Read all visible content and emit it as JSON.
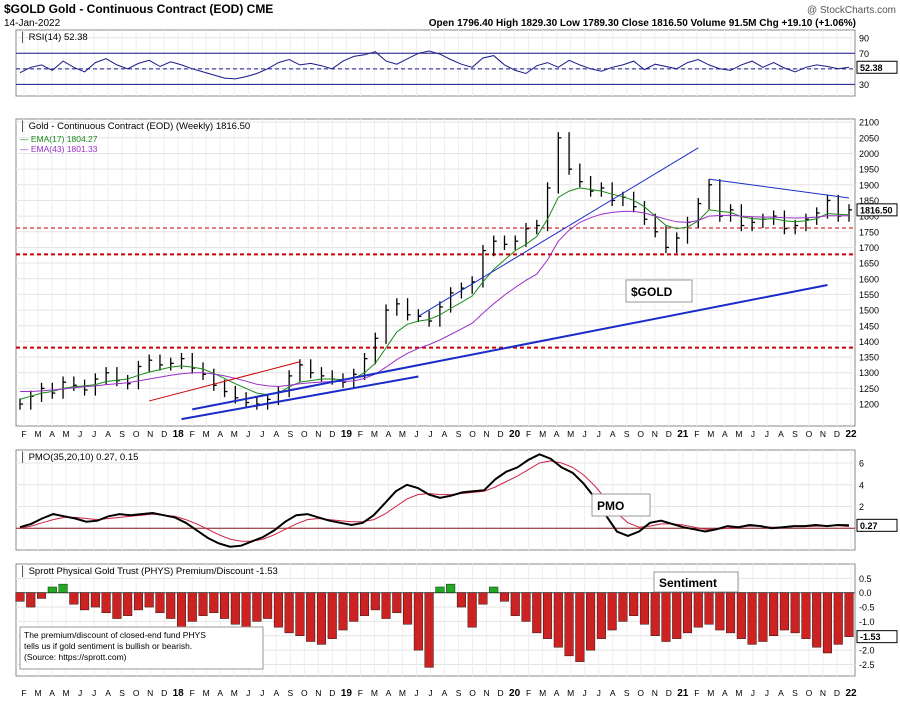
{
  "header": {
    "symbol_title": "$GOLD Gold - Continuous Contract (EOD) CME",
    "watermark": "@ StockCharts.com",
    "date": "14-Jan-2022",
    "ohlc": "Open 1796.40  High 1829.30  Low 1789.30  Close 1816.50  Volume 91.5M  Chg +19.10 (+1.06%)"
  },
  "colors": {
    "price": "#000000",
    "ema17": "#1a8a1a",
    "ema43": "#9b30c8",
    "trend": "#1a2cc8",
    "support": "#cc0000",
    "rsi": "#1a1a8a",
    "bar_red": "#cc2222",
    "bar_green": "#22aa22"
  },
  "x_axis_labels": [
    "F",
    "M",
    "A",
    "M",
    "J",
    "J",
    "A",
    "S",
    "O",
    "N",
    "D",
    "18",
    "F",
    "M",
    "A",
    "M",
    "J",
    "J",
    "A",
    "S",
    "O",
    "N",
    "D",
    "19",
    "F",
    "M",
    "A",
    "M",
    "J",
    "J",
    "A",
    "S",
    "O",
    "N",
    "D",
    "20",
    "F",
    "M",
    "A",
    "M",
    "J",
    "J",
    "A",
    "S",
    "O",
    "N",
    "D",
    "21",
    "F",
    "M",
    "A",
    "M",
    "J",
    "J",
    "A",
    "S",
    "O",
    "N",
    "D",
    "22"
  ],
  "chart_data": [
    {
      "type": "line",
      "title": "RSI(14) 52.38",
      "ylim": [
        15,
        100
      ],
      "y_ticks": [
        "90",
        "70",
        "50",
        "30"
      ],
      "last_label": "52.38",
      "reference_lines": [
        70,
        50,
        30
      ],
      "series": [
        {
          "name": "RSI(14)",
          "values": [
            45,
            52,
            55,
            48,
            60,
            52,
            46,
            58,
            63,
            55,
            50,
            57,
            61,
            53,
            59,
            55,
            50,
            46,
            42,
            38,
            37,
            40,
            44,
            50,
            58,
            62,
            55,
            57,
            54,
            50,
            60,
            66,
            68,
            72,
            60,
            56,
            63,
            70,
            73,
            69,
            62,
            56,
            52,
            64,
            67,
            55,
            48,
            44,
            54,
            58,
            52,
            61,
            55,
            50,
            47,
            52,
            55,
            60,
            49,
            56,
            53,
            50,
            58,
            62,
            55,
            50,
            48,
            55,
            60,
            52,
            58,
            51,
            46,
            52,
            55,
            53,
            50,
            52
          ]
        }
      ]
    },
    {
      "type": "line",
      "title": "Gold - Continuous Contract (EOD) (Weekly) 1816.50",
      "ylim": [
        1130,
        2110
      ],
      "y_ticks": [
        "2100",
        "2050",
        "2000",
        "1950",
        "1900",
        "1850",
        "1800",
        "1750",
        "1700",
        "1650",
        "1600",
        "1550",
        "1500",
        "1450",
        "1400",
        "1350",
        "1300",
        "1250",
        "1200"
      ],
      "last_label": "1816.50",
      "annotation": "$GOLD",
      "support_levels": [
        1762,
        1678,
        1380
      ],
      "series": [
        {
          "name": "Gold",
          "values": [
            1200,
            1225,
            1250,
            1235,
            1270,
            1260,
            1245,
            1280,
            1300,
            1275,
            1265,
            1320,
            1340,
            1325,
            1330,
            1345,
            1315,
            1295,
            1260,
            1240,
            1220,
            1205,
            1200,
            1215,
            1240,
            1290,
            1325,
            1300,
            1290,
            1280,
            1270,
            1295,
            1345,
            1410,
            1500,
            1520,
            1485,
            1480,
            1465,
            1510,
            1555,
            1570,
            1590,
            1690,
            1720,
            1710,
            1720,
            1760,
            1770,
            1890,
            2050,
            1950,
            1910,
            1880,
            1890,
            1850,
            1860,
            1830,
            1790,
            1750,
            1700,
            1730,
            1780,
            1840,
            1900,
            1800,
            1820,
            1770,
            1780,
            1790,
            1800,
            1760,
            1770,
            1790,
            1810,
            1850,
            1800,
            1820
          ]
        },
        {
          "name": "EMA(17) 1804.27",
          "values": [
            1215,
            1225,
            1235,
            1240,
            1250,
            1255,
            1258,
            1262,
            1272,
            1276,
            1280,
            1292,
            1302,
            1310,
            1318,
            1322,
            1318,
            1312,
            1298,
            1282,
            1265,
            1250,
            1235,
            1230,
            1235,
            1255,
            1270,
            1275,
            1280,
            1280,
            1278,
            1282,
            1300,
            1330,
            1380,
            1430,
            1455,
            1465,
            1470,
            1485,
            1505,
            1525,
            1545,
            1590,
            1630,
            1660,
            1690,
            1710,
            1735,
            1790,
            1860,
            1880,
            1890,
            1885,
            1880,
            1870,
            1862,
            1850,
            1830,
            1800,
            1770,
            1760,
            1765,
            1785,
            1820,
            1815,
            1812,
            1798,
            1792,
            1790,
            1792,
            1785,
            1782,
            1785,
            1792,
            1808,
            1806,
            1804
          ]
        },
        {
          "name": "EMA(43) 1801.33",
          "values": [
            1240,
            1240,
            1242,
            1245,
            1248,
            1252,
            1255,
            1258,
            1262,
            1265,
            1268,
            1274,
            1280,
            1286,
            1292,
            1297,
            1300,
            1300,
            1296,
            1290,
            1282,
            1273,
            1263,
            1258,
            1256,
            1260,
            1265,
            1268,
            1270,
            1272,
            1272,
            1274,
            1282,
            1296,
            1318,
            1342,
            1362,
            1378,
            1390,
            1405,
            1422,
            1440,
            1458,
            1490,
            1520,
            1548,
            1572,
            1595,
            1615,
            1660,
            1720,
            1755,
            1780,
            1795,
            1806,
            1812,
            1815,
            1815,
            1810,
            1800,
            1790,
            1782,
            1780,
            1786,
            1800,
            1802,
            1803,
            1800,
            1798,
            1797,
            1797,
            1795,
            1794,
            1795,
            1797,
            1801,
            1801,
            1801
          ]
        }
      ],
      "trend_lines": [
        {
          "from": [
            15,
            1152
          ],
          "to": [
            37,
            1288
          ]
        },
        {
          "from": [
            16,
            1183
          ],
          "to": [
            75,
            1580
          ]
        },
        {
          "from": [
            37,
            1480
          ],
          "to": [
            63,
            2018
          ]
        },
        {
          "from": [
            12,
            1210
          ],
          "to": [
            26,
            1335
          ]
        },
        {
          "from": [
            64,
            1918
          ],
          "to": [
            77,
            1858
          ]
        }
      ]
    },
    {
      "type": "line",
      "title": "PMO(35,20,10) 0.27, 0.15",
      "ylim": [
        -2,
        7.2
      ],
      "y_ticks": [
        "6",
        "4",
        "2",
        "0"
      ],
      "last_label": "0.27",
      "annotation": "PMO",
      "reference_lines": [
        0
      ],
      "series": [
        {
          "name": "PMO",
          "values": [
            0.1,
            0.4,
            0.9,
            1.3,
            1.1,
            0.9,
            0.6,
            0.7,
            1.1,
            1.3,
            1.2,
            1.3,
            1.4,
            1.2,
            1.0,
            0.5,
            -0.2,
            -0.9,
            -1.4,
            -1.7,
            -1.6,
            -1.2,
            -0.8,
            -0.2,
            0.6,
            1.2,
            1.3,
            1.0,
            0.7,
            0.5,
            0.3,
            0.5,
            1.2,
            2.3,
            3.4,
            4.0,
            3.7,
            3.1,
            2.8,
            3.0,
            3.3,
            3.4,
            3.5,
            4.5,
            5.2,
            5.6,
            6.3,
            6.8,
            6.4,
            5.6,
            5.1,
            4.1,
            2.8,
            1.2,
            -0.3,
            -0.7,
            -0.3,
            0.5,
            0.7,
            0.4,
            0.1,
            -0.1,
            -0.3,
            -0.1,
            0.2,
            0.1,
            0.3,
            0.2,
            0.0,
            0.1,
            0.2,
            0.2,
            0.3,
            0.2,
            0.3,
            0.27
          ]
        },
        {
          "name": "Signal",
          "values": [
            0.0,
            0.2,
            0.5,
            0.8,
            1.0,
            1.0,
            0.9,
            0.8,
            0.9,
            1.0,
            1.1,
            1.2,
            1.3,
            1.2,
            1.1,
            0.8,
            0.4,
            -0.1,
            -0.6,
            -1.0,
            -1.2,
            -1.2,
            -1.0,
            -0.6,
            -0.1,
            0.4,
            0.8,
            0.9,
            0.8,
            0.7,
            0.6,
            0.6,
            0.8,
            1.3,
            2.0,
            2.7,
            3.1,
            3.2,
            3.1,
            3.1,
            3.2,
            3.3,
            3.4,
            3.8,
            4.3,
            4.8,
            5.4,
            6.0,
            6.2,
            6.0,
            5.6,
            4.9,
            3.9,
            2.7,
            1.4,
            0.5,
            0.1,
            0.2,
            0.4,
            0.4,
            0.3,
            0.1,
            -0.1,
            -0.1,
            0.0,
            0.1,
            0.2,
            0.2,
            0.1,
            0.1,
            0.15,
            0.15,
            0.2,
            0.2,
            0.25,
            0.15
          ]
        }
      ]
    },
    {
      "type": "bar",
      "title": "Sprott Physical Gold Trust (PHYS) Premium/Discount -1.53",
      "ylim": [
        -2.9,
        1.0
      ],
      "y_ticks": [
        "0.5",
        "0.0",
        "-0.5",
        "-1.0",
        "-1.5",
        "-2.0",
        "-2.5"
      ],
      "last_label": "-1.53",
      "annotation": "Sentiment",
      "note": "The premium/discount of closed-end fund PHYS tells us if gold sentiment is bullish or bearish. (Source: https://sprott.com)",
      "reference_lines": [
        0
      ],
      "values": [
        -0.3,
        -0.5,
        -0.2,
        0.2,
        0.3,
        -0.4,
        -0.6,
        -0.5,
        -0.7,
        -0.9,
        -0.8,
        -0.6,
        -0.5,
        -0.7,
        -0.9,
        -1.2,
        -1.0,
        -0.8,
        -0.7,
        -0.9,
        -1.1,
        -1.3,
        -1.0,
        -0.9,
        -1.2,
        -1.4,
        -1.5,
        -1.7,
        -1.8,
        -1.6,
        -1.3,
        -1.0,
        -0.8,
        -0.6,
        -0.9,
        -0.7,
        -1.1,
        -2.0,
        -2.6,
        0.2,
        0.3,
        -0.5,
        -1.2,
        -0.4,
        0.2,
        -0.3,
        -0.8,
        -1.0,
        -1.4,
        -1.6,
        -1.9,
        -2.2,
        -2.4,
        -2.0,
        -1.6,
        -1.3,
        -1.0,
        -0.8,
        -1.1,
        -1.5,
        -1.7,
        -1.6,
        -1.4,
        -1.2,
        -1.1,
        -1.3,
        -1.4,
        -1.6,
        -1.8,
        -1.7,
        -1.5,
        -1.3,
        -1.4,
        -1.6,
        -1.9,
        -2.1,
        -1.8,
        -1.53
      ]
    }
  ]
}
